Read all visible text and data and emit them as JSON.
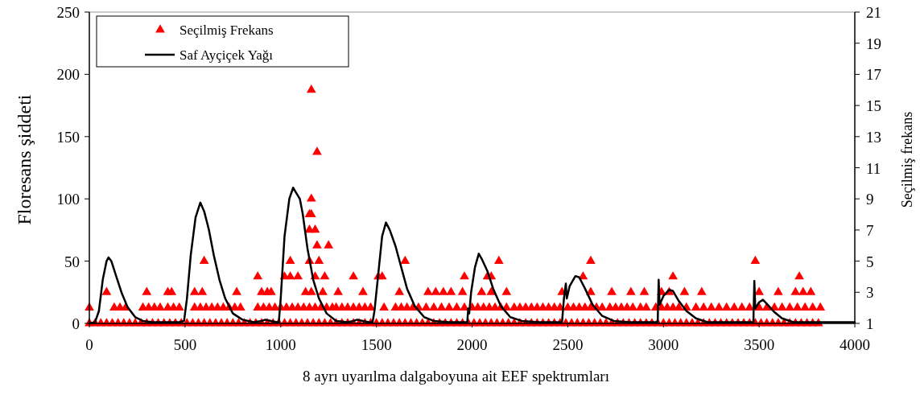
{
  "chart_data": {
    "type": "line",
    "xlabel": "8 ayrı uyarılma dalgaboyuna ait EEF spektrumları",
    "ylabel": "Floresans şiddeti",
    "y2label": "Seçilmiş frekans",
    "xlim": [
      0,
      4000
    ],
    "xticks": [
      0,
      500,
      1000,
      1500,
      2000,
      2500,
      3000,
      3500,
      4000
    ],
    "ylim": [
      0,
      250
    ],
    "yticks": [
      0,
      50,
      100,
      150,
      200,
      250
    ],
    "y2lim": [
      1,
      21
    ],
    "y2ticks": [
      1,
      3,
      5,
      7,
      9,
      11,
      13,
      15,
      17,
      19,
      21
    ],
    "legend": "top left",
    "grid": false,
    "series": [
      {
        "type": "scatter",
        "name": "Seçilmiş Frekans",
        "color": "#ff0000",
        "axis": "y2",
        "marker": "triangle",
        "x": [
          0,
          30,
          60,
          90,
          120,
          150,
          180,
          210,
          240,
          270,
          300,
          330,
          360,
          390,
          420,
          450,
          480,
          510,
          540,
          570,
          600,
          630,
          660,
          690,
          720,
          750,
          780,
          810,
          840,
          870,
          900,
          930,
          960,
          990,
          1020,
          1050,
          1080,
          1110,
          1140,
          1170,
          1200,
          1230,
          1260,
          1290,
          1320,
          1350,
          1380,
          1410,
          1440,
          1470,
          1500,
          1530,
          1560,
          1590,
          1620,
          1650,
          1680,
          1710,
          1740,
          1770,
          1800,
          1830,
          1860,
          1890,
          1920,
          1950,
          1980,
          2010,
          2040,
          2070,
          2100,
          2130,
          2160,
          2190,
          2220,
          2250,
          2280,
          2310,
          2340,
          2370,
          2400,
          2430,
          2460,
          2490,
          2520,
          2550,
          2580,
          2610,
          2640,
          2670,
          2700,
          2730,
          2760,
          2790,
          2820,
          2850,
          2880,
          2910,
          2940,
          2970,
          3000,
          3030,
          3060,
          3090,
          3120,
          3150,
          3180,
          3210,
          3240,
          3270,
          3300,
          3330,
          3360,
          3390,
          3420,
          3450,
          3480,
          3510,
          3540,
          3570,
          3600,
          3630,
          3660,
          3690,
          3720,
          3750,
          3780,
          3810,
          0,
          130,
          160,
          190,
          280,
          310,
          340,
          370,
          410,
          440,
          470,
          550,
          580,
          610,
          640,
          670,
          700,
          730,
          760,
          790,
          880,
          910,
          940,
          970,
          1000,
          1030,
          1060,
          1090,
          1120,
          1150,
          1180,
          1210,
          1240,
          1270,
          1290,
          1320,
          1350,
          1380,
          1410,
          1440,
          1470,
          1540,
          1600,
          1630,
          1660,
          1690,
          1720,
          1760,
          1800,
          1840,
          1880,
          1920,
          1960,
          2000,
          2030,
          2060,
          2090,
          2120,
          2150,
          2180,
          2220,
          2250,
          2280,
          2310,
          2340,
          2370,
          2400,
          2430,
          2460,
          2500,
          2530,
          2560,
          2590,
          2620,
          2650,
          2680,
          2720,
          2750,
          2780,
          2810,
          2840,
          2880,
          2910,
          2960,
          2990,
          3020,
          3050,
          3080,
          3120,
          3170,
          3210,
          3250,
          3290,
          3330,
          3370,
          3410,
          3450,
          3500,
          3540,
          3580,
          3620,
          3660,
          3700,
          3740,
          3780,
          3820,
          90,
          300,
          410,
          430,
          550,
          590,
          770,
          900,
          930,
          950,
          1130,
          1160,
          1220,
          1300,
          1430,
          1620,
          1770,
          1810,
          1850,
          1890,
          1950,
          2050,
          2100,
          2180,
          2470,
          2620,
          2730,
          2830,
          2900,
          2990,
          3030,
          3110,
          3200,
          3500,
          3600,
          3690,
          3730,
          3770,
          880,
          1020,
          1050,
          1090,
          1180,
          1230,
          1380,
          1510,
          1530,
          1960,
          2080,
          2100,
          2580,
          3050,
          3710,
          600,
          1050,
          1150,
          1200,
          1650,
          2140,
          2620,
          3480,
          1190,
          1250,
          1150,
          1180,
          1150,
          1160,
          1160,
          1190,
          1160
        ],
        "values": [
          1,
          1,
          1,
          1,
          1,
          1,
          1,
          1,
          1,
          1,
          1,
          1,
          1,
          1,
          1,
          1,
          1,
          1,
          1,
          1,
          1,
          1,
          1,
          1,
          1,
          1,
          1,
          1,
          1,
          1,
          1,
          1,
          1,
          1,
          1,
          1,
          1,
          1,
          1,
          1,
          1,
          1,
          1,
          1,
          1,
          1,
          1,
          1,
          1,
          1,
          1,
          1,
          1,
          1,
          1,
          1,
          1,
          1,
          1,
          1,
          1,
          1,
          1,
          1,
          1,
          1,
          1,
          1,
          1,
          1,
          1,
          1,
          1,
          1,
          1,
          1,
          1,
          1,
          1,
          1,
          1,
          1,
          1,
          1,
          1,
          1,
          1,
          1,
          1,
          1,
          1,
          1,
          1,
          1,
          1,
          1,
          1,
          1,
          1,
          1,
          1,
          1,
          1,
          1,
          1,
          1,
          1,
          1,
          1,
          1,
          1,
          1,
          1,
          1,
          1,
          1,
          1,
          1,
          1,
          1,
          1,
          1,
          1,
          1,
          1,
          1,
          1,
          1,
          2,
          2,
          2,
          2,
          2,
          2,
          2,
          2,
          2,
          2,
          2,
          2,
          2,
          2,
          2,
          2,
          2,
          2,
          2,
          2,
          2,
          2,
          2,
          2,
          2,
          2,
          2,
          2,
          2,
          2,
          2,
          2,
          2,
          2,
          2,
          2,
          2,
          2,
          2,
          2,
          2,
          2,
          2,
          2,
          2,
          2,
          2,
          2,
          2,
          2,
          2,
          2,
          2,
          2,
          2,
          2,
          2,
          2,
          2,
          2,
          2,
          2,
          2,
          2,
          2,
          2,
          2,
          2,
          2,
          2,
          2,
          2,
          2,
          2,
          2,
          2,
          2,
          2,
          2,
          2,
          2,
          2,
          2,
          2,
          2,
          2,
          2,
          2,
          2,
          2,
          2,
          2,
          2,
          2,
          2,
          2,
          2,
          2,
          2,
          2,
          2,
          2,
          2,
          2,
          2,
          2,
          3,
          3,
          3,
          3,
          3,
          3,
          3,
          3,
          3,
          3,
          3,
          3,
          3,
          3,
          3,
          3,
          3,
          3,
          3,
          3,
          3,
          3,
          3,
          3,
          3,
          3,
          3,
          3,
          3,
          3,
          3,
          3,
          3,
          3,
          3,
          3,
          3,
          3,
          4,
          4,
          4,
          4,
          4,
          4,
          4,
          4,
          4,
          4,
          4,
          4,
          4,
          4,
          4,
          5,
          5,
          5,
          5,
          5,
          5,
          5,
          5,
          6,
          6,
          7,
          7,
          8,
          8,
          9,
          12,
          16
        ]
      },
      {
        "name": "Saf Ayçiçek Yağı",
        "color": "#000000",
        "line_style": "solid",
        "x": [
          0,
          30,
          50,
          70,
          90,
          100,
          115,
          140,
          170,
          200,
          240,
          280,
          330,
          400,
          470,
          495,
          510,
          530,
          555,
          580,
          600,
          625,
          650,
          680,
          710,
          750,
          800,
          860,
          900,
          920,
          950,
          980,
          990,
          1000,
          1020,
          1045,
          1065,
          1080,
          1100,
          1115,
          1140,
          1170,
          1200,
          1240,
          1290,
          1350,
          1380,
          1400,
          1430,
          1460,
          1480,
          1490,
          1510,
          1530,
          1550,
          1570,
          1600,
          1630,
          1660,
          1700,
          1750,
          1800,
          1880,
          1960,
          1975,
          1980,
          1985,
          1995,
          2015,
          2035,
          2050,
          2080,
          2110,
          2150,
          2200,
          2260,
          2350,
          2470,
          2480,
          2490,
          2495,
          2510,
          2540,
          2560,
          2590,
          2630,
          2680,
          2740,
          2820,
          2960,
          2970,
          2975,
          2980,
          3000,
          3030,
          3050,
          3080,
          3120,
          3170,
          3230,
          3460,
          3470,
          3475,
          3480,
          3500,
          3520,
          3545,
          3580,
          3620,
          3680,
          3800,
          4000
        ],
        "values": [
          0,
          1,
          10,
          35,
          50,
          53,
          50,
          38,
          24,
          13,
          5,
          2,
          1,
          1,
          1,
          2,
          20,
          55,
          85,
          97,
          90,
          75,
          55,
          35,
          20,
          8,
          3,
          1,
          2,
          3,
          2,
          1,
          1,
          20,
          70,
          100,
          109,
          105,
          100,
          88,
          60,
          35,
          20,
          8,
          2,
          1,
          2,
          3,
          2,
          1,
          1,
          10,
          40,
          70,
          81,
          75,
          62,
          45,
          28,
          14,
          5,
          2,
          1,
          1,
          1,
          12,
          8,
          25,
          45,
          56,
          52,
          42,
          28,
          14,
          5,
          2,
          1,
          1,
          20,
          32,
          20,
          30,
          38,
          37,
          28,
          15,
          6,
          2,
          1,
          1,
          1,
          35,
          15,
          22,
          27,
          26,
          18,
          10,
          4,
          1,
          1,
          1,
          34,
          12,
          17,
          19,
          15,
          9,
          4,
          1,
          1,
          1
        ]
      }
    ]
  }
}
